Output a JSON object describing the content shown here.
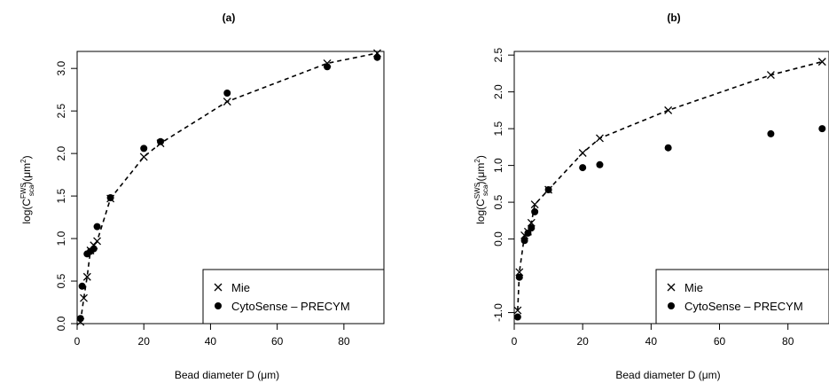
{
  "chart_data": [
    {
      "type": "scatter",
      "title": "(a)",
      "xlabel": "Bead diameter D (μm)",
      "ylabel": {
        "prefix": "log(C",
        "sub": "sca",
        "sup": "FWS",
        "suffix": ")(μm",
        "sup2": "2",
        "end": ")"
      },
      "xlim": [
        0,
        92
      ],
      "ylim": [
        0,
        3.2
      ],
      "xticks": [
        0,
        20,
        40,
        60,
        80
      ],
      "yticks": [
        0.0,
        0.5,
        1.0,
        1.5,
        2.0,
        2.5,
        3.0
      ],
      "ytick_labels": [
        "0.0",
        "0.5",
        "1.0",
        "1.5",
        "2.0",
        "2.5",
        "3.0"
      ],
      "legend_position": "bottom-right",
      "series": [
        {
          "name": "Mie",
          "marker": "x",
          "line": "dashed",
          "x": [
            1,
            2,
            3,
            4,
            5,
            6,
            10,
            20,
            25,
            45,
            75,
            90
          ],
          "y": [
            0.02,
            0.3,
            0.55,
            0.86,
            0.92,
            0.97,
            1.47,
            1.96,
            2.12,
            2.61,
            3.06,
            3.18
          ]
        },
        {
          "name": "CytoSense – PRECYM",
          "marker": "dot",
          "x": [
            1,
            1.5,
            3,
            4,
            5,
            6,
            10,
            20,
            25,
            45,
            75,
            90
          ],
          "y": [
            0.06,
            0.44,
            0.82,
            0.85,
            0.88,
            1.14,
            1.48,
            2.06,
            2.14,
            2.71,
            3.02,
            3.13
          ]
        }
      ]
    },
    {
      "type": "scatter",
      "title": "(b)",
      "xlabel": "Bead diameter D (μm)",
      "ylabel": {
        "prefix": "log(C",
        "sub": "sca",
        "sup": "SWS",
        "suffix": ")(μm",
        "sup2": "2",
        "end": ")"
      },
      "xlim": [
        0,
        92
      ],
      "ylim": [
        -1.15,
        2.55
      ],
      "xticks": [
        0,
        20,
        40,
        60,
        80
      ],
      "yticks": [
        -1.0,
        0.0,
        0.5,
        1.0,
        1.5,
        2.0,
        2.5
      ],
      "ytick_labels": [
        "-1.0",
        "0.0",
        "0.5",
        "1.0",
        "1.5",
        "2.0",
        "2.5"
      ],
      "legend_position": "bottom-right",
      "series": [
        {
          "name": "Mie",
          "marker": "x",
          "line": "dashed",
          "x": [
            1,
            1.5,
            3,
            4,
            5,
            6,
            10,
            20,
            25,
            45,
            75,
            90
          ],
          "y": [
            -0.97,
            -0.45,
            0.05,
            0.1,
            0.22,
            0.47,
            0.67,
            1.17,
            1.37,
            1.75,
            2.23,
            2.41
          ]
        },
        {
          "name": "CytoSense – PRECYM",
          "marker": "dot",
          "x": [
            1,
            1.5,
            3,
            4,
            5,
            6,
            10,
            20,
            25,
            45,
            75,
            90
          ],
          "y": [
            -1.06,
            -0.52,
            -0.02,
            0.08,
            0.15,
            0.37,
            0.67,
            0.97,
            1.01,
            1.24,
            1.43,
            1.5
          ]
        }
      ]
    }
  ]
}
